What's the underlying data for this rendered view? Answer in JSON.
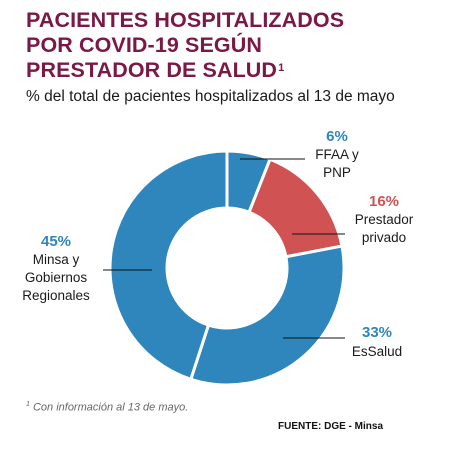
{
  "chart_data": {
    "type": "pie",
    "title": "PACIENTES HOSPITALIZADOS POR COVID-19 SEGÚN PRESTADOR DE SALUD",
    "title_lines": [
      "PACIENTES HOSPITALIZADOS",
      "POR COVID-19 SEGÚN",
      "PRESTADOR DE SALUD"
    ],
    "title_sup": "1",
    "subtitle": "% del total de pacientes hospitalizados al 13 de mayo",
    "donut": true,
    "slices": [
      {
        "label_lines": [
          "FFAA y",
          "PNP"
        ],
        "label": "FFAA y PNP",
        "pct_text": "6%",
        "value": 6,
        "color": "#2e86bc",
        "pct_color": "#2e86bc"
      },
      {
        "label_lines": [
          "Prestador",
          "privado"
        ],
        "label": "Prestador privado",
        "pct_text": "16%",
        "value": 16,
        "color": "#d05252",
        "pct_color": "#d05252"
      },
      {
        "label_lines": [
          "EsSalud"
        ],
        "label": "EsSalud",
        "pct_text": "33%",
        "value": 33,
        "color": "#2e86bc",
        "pct_color": "#2e86bc"
      },
      {
        "label_lines": [
          "Minsa y",
          "Gobiernos",
          "Regionales"
        ],
        "label": "Minsa y Gobiernos Regionales",
        "pct_text": "45%",
        "value": 45,
        "color": "#2e86bc",
        "pct_color": "#2e86bc"
      }
    ]
  },
  "footnote": {
    "sup": "1",
    "text": " Con información al 13 de mayo."
  },
  "source": "FUENTE: DGE - Minsa"
}
